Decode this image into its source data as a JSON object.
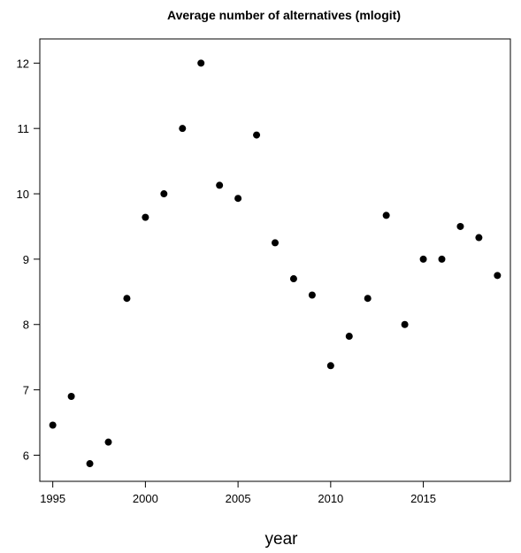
{
  "chart_data": {
    "type": "scatter",
    "title": "Average number of alternatives (mlogit)",
    "xlabel": "year",
    "ylabel": "",
    "xlim": [
      1994.3,
      2019.7
    ],
    "ylim": [
      5.6,
      12.37
    ],
    "xticks": [
      1995,
      2000,
      2005,
      2010,
      2015
    ],
    "yticks": [
      6,
      7,
      8,
      9,
      10,
      11,
      12
    ],
    "grid": false,
    "marker_color": "#000000",
    "points": [
      {
        "x": 1995,
        "y": 6.46
      },
      {
        "x": 1996,
        "y": 6.9
      },
      {
        "x": 1997,
        "y": 5.87
      },
      {
        "x": 1998,
        "y": 6.2
      },
      {
        "x": 1999,
        "y": 8.4
      },
      {
        "x": 2000,
        "y": 9.64
      },
      {
        "x": 2001,
        "y": 10.0
      },
      {
        "x": 2002,
        "y": 11.0
      },
      {
        "x": 2003,
        "y": 12.0
      },
      {
        "x": 2004,
        "y": 10.13
      },
      {
        "x": 2005,
        "y": 9.93
      },
      {
        "x": 2006,
        "y": 10.9
      },
      {
        "x": 2007,
        "y": 9.25
      },
      {
        "x": 2008,
        "y": 8.7
      },
      {
        "x": 2009,
        "y": 8.45
      },
      {
        "x": 2010,
        "y": 7.37
      },
      {
        "x": 2011,
        "y": 7.82
      },
      {
        "x": 2012,
        "y": 8.4
      },
      {
        "x": 2013,
        "y": 9.67
      },
      {
        "x": 2014,
        "y": 8.0
      },
      {
        "x": 2015,
        "y": 9.0
      },
      {
        "x": 2016,
        "y": 9.0
      },
      {
        "x": 2017,
        "y": 9.5
      },
      {
        "x": 2018,
        "y": 9.33
      },
      {
        "x": 2019,
        "y": 8.75
      }
    ]
  }
}
